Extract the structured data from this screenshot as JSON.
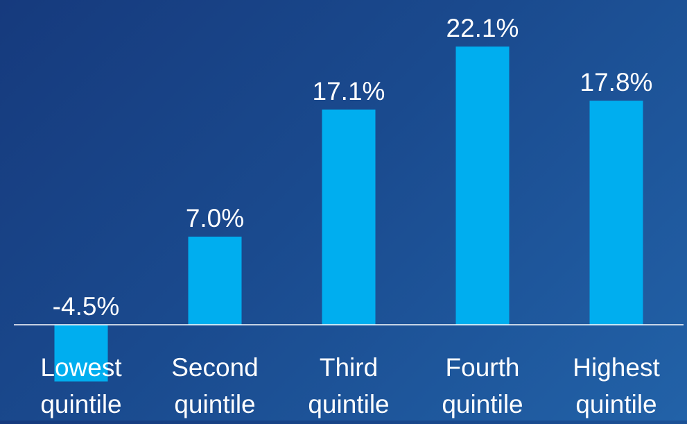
{
  "chart_data": {
    "type": "bar",
    "categories": [
      [
        "Lowest",
        "quintile"
      ],
      [
        "Second",
        "quintile"
      ],
      [
        "Third",
        "quintile"
      ],
      [
        "Fourth",
        "quintile"
      ],
      [
        "Highest",
        "quintile"
      ]
    ],
    "values": [
      -4.5,
      7.0,
      17.1,
      22.1,
      17.8
    ],
    "value_labels": [
      "-4.5%",
      "7.0%",
      "17.1%",
      "22.1%",
      "17.8%"
    ],
    "title": "",
    "xlabel": "",
    "ylabel": "",
    "ylim": [
      -4.5,
      22.1
    ],
    "grid": false,
    "legend": "none"
  },
  "colors": {
    "bar": "#00aeef",
    "axis": "#ffffff",
    "text": "#ffffff"
  }
}
